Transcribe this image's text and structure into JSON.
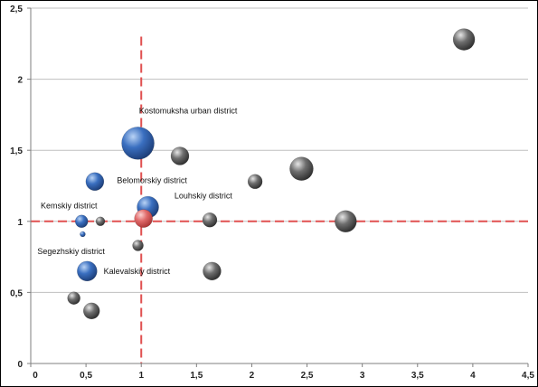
{
  "chart_data": {
    "type": "scatter",
    "subtype": "bubble",
    "title": "",
    "xlabel": "",
    "ylabel": "",
    "xlim": [
      0,
      4.5
    ],
    "ylim": [
      0,
      2.5
    ],
    "x_ticks": [
      "0",
      "0,5",
      "1",
      "1,5",
      "2",
      "2,5",
      "3",
      "3,5",
      "4",
      "4,5"
    ],
    "y_ticks": [
      "0",
      "0,5",
      "1",
      "1,5",
      "2",
      "2,5"
    ],
    "grid": "horizontal",
    "legend": "none",
    "reference_lines": {
      "x": 1,
      "y": 1,
      "color": "#e05050",
      "style": "dashed"
    },
    "colors": {
      "highlighted": "#3a6fc0",
      "other": "#6e6e6e",
      "reference": "#e55555",
      "grid": "#bfbfbf"
    },
    "points": [
      {
        "x": 0.97,
        "y": 1.55,
        "size": 18,
        "group": "highlighted"
      },
      {
        "x": 0.58,
        "y": 1.28,
        "size": 10,
        "group": "highlighted"
      },
      {
        "x": 1.06,
        "y": 1.1,
        "size": 12,
        "group": "highlighted"
      },
      {
        "x": 0.46,
        "y": 1.0,
        "size": 7,
        "group": "highlighted"
      },
      {
        "x": 0.47,
        "y": 0.91,
        "size": 3,
        "group": "highlighted"
      },
      {
        "x": 0.51,
        "y": 0.65,
        "size": 11,
        "group": "highlighted"
      },
      {
        "x": 1.02,
        "y": 1.02,
        "size": 10,
        "group": "reference"
      },
      {
        "x": 0.63,
        "y": 1.0,
        "size": 5,
        "group": "other"
      },
      {
        "x": 0.97,
        "y": 0.83,
        "size": 6,
        "group": "other"
      },
      {
        "x": 1.35,
        "y": 1.46,
        "size": 10,
        "group": "other"
      },
      {
        "x": 1.62,
        "y": 1.01,
        "size": 8,
        "group": "other"
      },
      {
        "x": 1.64,
        "y": 0.65,
        "size": 10,
        "group": "other"
      },
      {
        "x": 2.03,
        "y": 1.28,
        "size": 8,
        "group": "other"
      },
      {
        "x": 2.45,
        "y": 1.37,
        "size": 13,
        "group": "other"
      },
      {
        "x": 2.85,
        "y": 1.0,
        "size": 12,
        "group": "other"
      },
      {
        "x": 3.92,
        "y": 2.28,
        "size": 12,
        "group": "other"
      },
      {
        "x": 0.39,
        "y": 0.46,
        "size": 7,
        "group": "other"
      },
      {
        "x": 0.55,
        "y": 0.37,
        "size": 9,
        "group": "other"
      }
    ],
    "annotations": [
      {
        "text": "Kostomuksha urban district",
        "x": 0.98,
        "y": 1.76
      },
      {
        "text": "Belomorskiy district",
        "x": 0.78,
        "y": 1.27
      },
      {
        "text": "Louhskiy district",
        "x": 1.3,
        "y": 1.16
      },
      {
        "text": "Kemskiy district",
        "x": 0.09,
        "y": 1.09
      },
      {
        "text": "Segezhskiy district",
        "x": 0.06,
        "y": 0.77
      },
      {
        "text": "Kalevalskiy district",
        "x": 0.66,
        "y": 0.63
      }
    ]
  }
}
